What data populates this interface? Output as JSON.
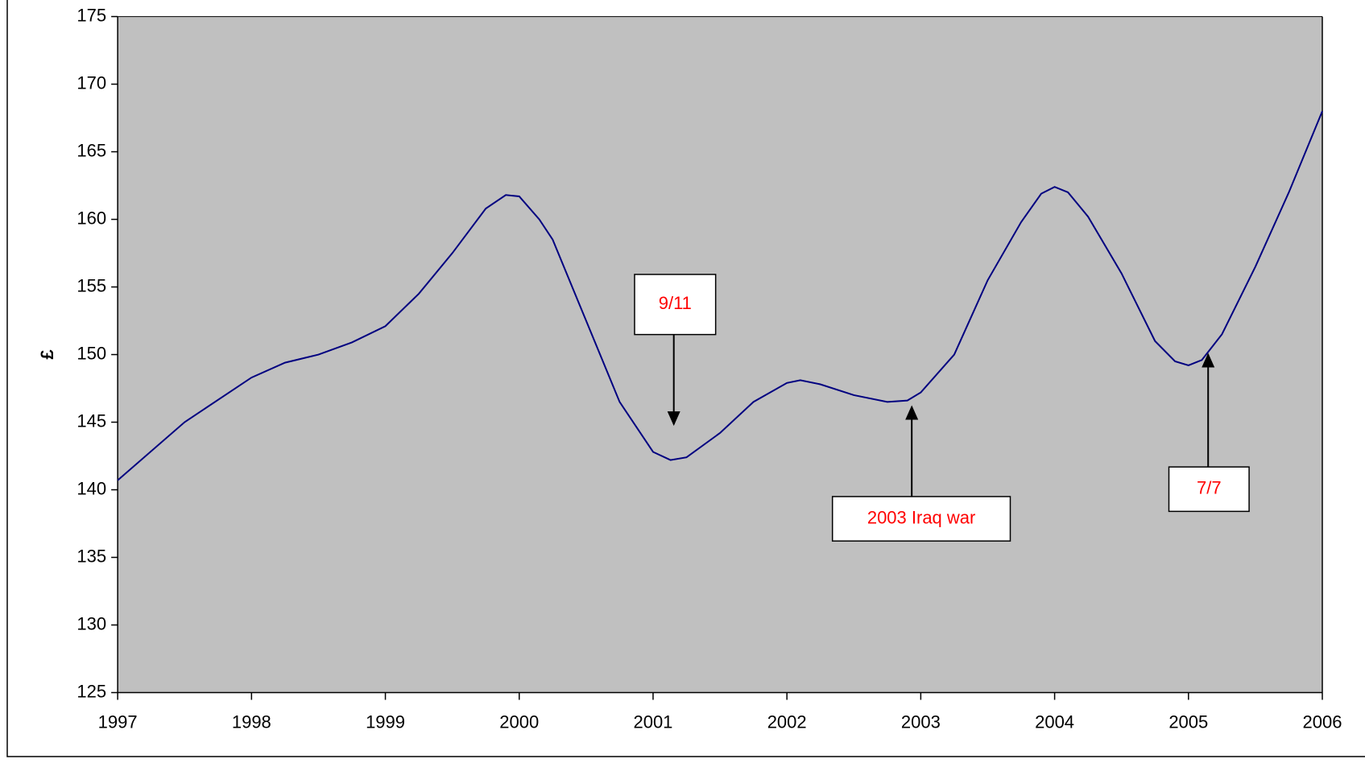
{
  "chart_data": {
    "type": "line",
    "ylabel": "£",
    "x": [
      1997.0,
      1997.5,
      1998.0,
      1998.25,
      1998.5,
      1998.75,
      1999.0,
      1999.25,
      1999.5,
      1999.75,
      1999.9,
      2000.0,
      2000.15,
      2000.25,
      2000.5,
      2000.75,
      2001.0,
      2001.13,
      2001.25,
      2001.5,
      2001.75,
      2002.0,
      2002.1,
      2002.25,
      2002.5,
      2002.75,
      2002.9,
      2003.0,
      2003.25,
      2003.5,
      2003.75,
      2003.9,
      2004.0,
      2004.1,
      2004.25,
      2004.5,
      2004.75,
      2004.9,
      2005.0,
      2005.1,
      2005.25,
      2005.5,
      2005.75,
      2006.0
    ],
    "series": [
      {
        "color": "#000080",
        "values": [
          140.7,
          145.0,
          148.3,
          149.4,
          150.0,
          150.9,
          152.1,
          154.5,
          157.5,
          160.8,
          161.8,
          161.7,
          160.0,
          158.5,
          152.5,
          146.5,
          142.8,
          142.2,
          142.4,
          144.2,
          146.5,
          147.9,
          148.1,
          147.8,
          147.0,
          146.5,
          146.6,
          147.2,
          150.0,
          155.5,
          159.8,
          161.9,
          162.4,
          162.0,
          160.2,
          156.0,
          151.0,
          149.5,
          149.2,
          149.6,
          151.5,
          156.5,
          162.0,
          168.0
        ]
      }
    ],
    "xlim": [
      1997,
      2006
    ],
    "xticks": [
      1997,
      1998,
      1999,
      2000,
      2001,
      2002,
      2003,
      2004,
      2005,
      2006
    ],
    "ylim": [
      125,
      175
    ],
    "yticks": [
      125,
      130,
      135,
      140,
      145,
      150,
      155,
      160,
      165,
      170,
      175
    ],
    "plot_background": "#c0c0c0",
    "annotations": [
      {
        "text": "9/11"
      },
      {
        "text": "2003 Iraq war"
      },
      {
        "text": "7/7"
      }
    ]
  }
}
